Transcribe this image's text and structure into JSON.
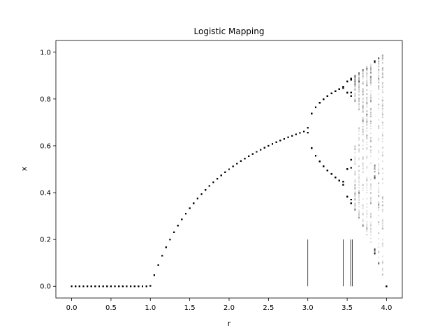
{
  "chart_data": {
    "type": "scatter",
    "title": "Logistic Mapping",
    "xlabel": "r",
    "ylabel": "x",
    "xlim": [
      -0.2,
      4.2
    ],
    "ylim": [
      -0.05,
      1.05
    ],
    "x_ticks": [
      "0.0",
      "0.5",
      "1.0",
      "1.5",
      "2.0",
      "2.5",
      "3.0",
      "3.5",
      "4.0"
    ],
    "y_ticks": [
      "0.0",
      "0.2",
      "0.4",
      "0.6",
      "0.8",
      "1.0"
    ],
    "x_tick_values": [
      0.0,
      0.5,
      1.0,
      1.5,
      2.0,
      2.5,
      3.0,
      3.5,
      4.0
    ],
    "y_tick_values": [
      0.0,
      0.2,
      0.4,
      0.6,
      0.8,
      1.0
    ],
    "grid": false,
    "point_color": "#000000",
    "r_range": [
      0.0,
      4.0
    ],
    "r_step": 0.05,
    "vertical_lines": [
      {
        "r": 3.0,
        "y_range": [
          0.0,
          0.2
        ]
      },
      {
        "r": 3.449,
        "y_range": [
          0.0,
          0.2
        ]
      },
      {
        "r": 3.544,
        "y_range": [
          0.0,
          0.2
        ]
      },
      {
        "r": 3.5644,
        "y_range": [
          0.0,
          0.2
        ]
      }
    ]
  }
}
